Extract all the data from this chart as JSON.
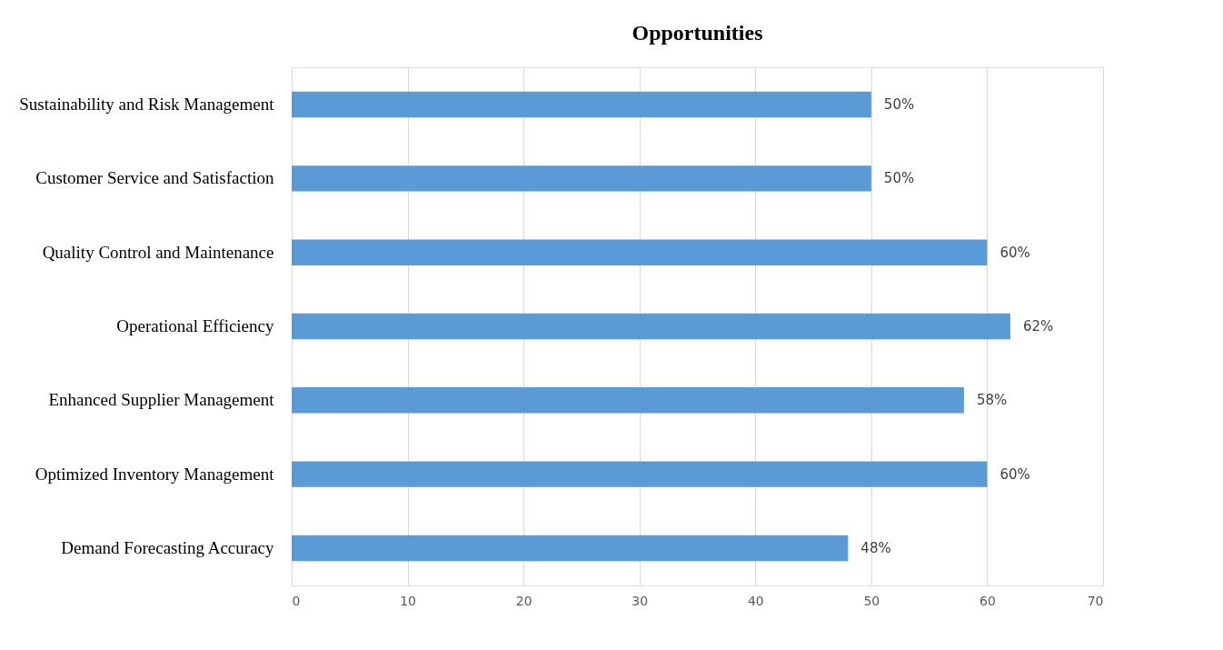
{
  "chart_data": {
    "type": "bar",
    "orientation": "horizontal",
    "title": "Opportunities",
    "categories": [
      "Sustainability and Risk Management",
      "Customer Service and Satisfaction",
      "Quality Control and Maintenance",
      "Operational Efficiency",
      "Enhanced Supplier Management",
      "Optimized Inventory Management",
      "Demand Forecasting Accuracy"
    ],
    "values": [
      50,
      50,
      60,
      62,
      58,
      60,
      48
    ],
    "value_labels": [
      "50%",
      "50%",
      "60%",
      "62%",
      "58%",
      "60%",
      "48%"
    ],
    "color": "#5b9bd5",
    "xlim": [
      0,
      70
    ],
    "xticks": [
      0,
      10,
      20,
      30,
      40,
      50,
      60,
      70
    ],
    "grid": "x"
  }
}
